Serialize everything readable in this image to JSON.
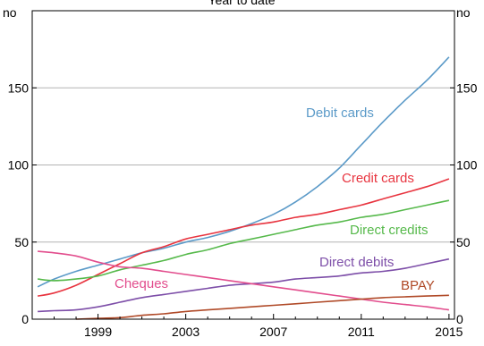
{
  "chart_data": {
    "type": "line",
    "title": "Year to date",
    "y_unit_left": "no",
    "y_unit_right": "no",
    "xlim": [
      1996.0,
      2015.25
    ],
    "ylim": [
      0,
      200
    ],
    "yticks": [
      0,
      50,
      100,
      150
    ],
    "xticks": [
      1999,
      2003,
      2007,
      2011,
      2015
    ],
    "grid": true,
    "series": [
      {
        "name": "Debit cards",
        "color": "#5b9ac8",
        "points": [
          [
            1996.25,
            21
          ],
          [
            1997,
            26
          ],
          [
            1998,
            31
          ],
          [
            1999,
            35
          ],
          [
            2000,
            39
          ],
          [
            2001,
            43
          ],
          [
            2002,
            46
          ],
          [
            2003,
            50
          ],
          [
            2004,
            53
          ],
          [
            2005,
            57
          ],
          [
            2006,
            62
          ],
          [
            2007,
            68
          ],
          [
            2008,
            76
          ],
          [
            2009,
            86
          ],
          [
            2010,
            98
          ],
          [
            2011,
            113
          ],
          [
            2012,
            128
          ],
          [
            2013,
            142
          ],
          [
            2014,
            155
          ],
          [
            2015,
            170
          ]
        ]
      },
      {
        "name": "Credit cards",
        "color": "#e8343f",
        "points": [
          [
            1996.25,
            15
          ],
          [
            1997,
            17
          ],
          [
            1998,
            22
          ],
          [
            1999,
            29
          ],
          [
            2000,
            36
          ],
          [
            2001,
            43
          ],
          [
            2002,
            47
          ],
          [
            2003,
            52
          ],
          [
            2004,
            55
          ],
          [
            2005,
            58
          ],
          [
            2006,
            61
          ],
          [
            2007,
            63
          ],
          [
            2008,
            66
          ],
          [
            2009,
            68
          ],
          [
            2010,
            71
          ],
          [
            2011,
            74
          ],
          [
            2012,
            78
          ],
          [
            2013,
            82
          ],
          [
            2014,
            86
          ],
          [
            2015,
            91
          ]
        ]
      },
      {
        "name": "Direct credits",
        "color": "#56b94b",
        "points": [
          [
            1996.25,
            26
          ],
          [
            1997,
            25
          ],
          [
            1998,
            26
          ],
          [
            1999,
            28
          ],
          [
            2000,
            32
          ],
          [
            2001,
            35
          ],
          [
            2002,
            38
          ],
          [
            2003,
            42
          ],
          [
            2004,
            45
          ],
          [
            2005,
            49
          ],
          [
            2006,
            52
          ],
          [
            2007,
            55
          ],
          [
            2008,
            58
          ],
          [
            2009,
            61
          ],
          [
            2010,
            63
          ],
          [
            2011,
            66
          ],
          [
            2012,
            68
          ],
          [
            2013,
            71
          ],
          [
            2014,
            74
          ],
          [
            2015,
            77
          ]
        ]
      },
      {
        "name": "Direct debits",
        "color": "#7d4ea8",
        "points": [
          [
            1996.25,
            5
          ],
          [
            1997,
            5.5
          ],
          [
            1998,
            6
          ],
          [
            1999,
            8
          ],
          [
            2000,
            11
          ],
          [
            2001,
            14
          ],
          [
            2002,
            16
          ],
          [
            2003,
            18
          ],
          [
            2004,
            20
          ],
          [
            2005,
            22
          ],
          [
            2006,
            23
          ],
          [
            2007,
            24
          ],
          [
            2008,
            26
          ],
          [
            2009,
            27
          ],
          [
            2010,
            28
          ],
          [
            2011,
            30
          ],
          [
            2012,
            31
          ],
          [
            2013,
            33
          ],
          [
            2014,
            36
          ],
          [
            2015,
            39
          ]
        ]
      },
      {
        "name": "Cheques",
        "color": "#e24d8d",
        "points": [
          [
            1996.25,
            44
          ],
          [
            1997,
            43
          ],
          [
            1998,
            41
          ],
          [
            1999,
            37
          ],
          [
            2000,
            34
          ],
          [
            2001,
            33
          ],
          [
            2002,
            31
          ],
          [
            2003,
            29
          ],
          [
            2004,
            27
          ],
          [
            2005,
            25
          ],
          [
            2006,
            23
          ],
          [
            2007,
            21
          ],
          [
            2008,
            19
          ],
          [
            2009,
            17
          ],
          [
            2010,
            15
          ],
          [
            2011,
            13
          ],
          [
            2012,
            11
          ],
          [
            2013,
            9.5
          ],
          [
            2014,
            8
          ],
          [
            2015,
            6
          ]
        ]
      },
      {
        "name": "BPAY",
        "color": "#b04a28",
        "points": [
          [
            1998,
            0
          ],
          [
            1999,
            0.5
          ],
          [
            2000,
            1
          ],
          [
            2001,
            2.5
          ],
          [
            2002,
            3.5
          ],
          [
            2003,
            5
          ],
          [
            2004,
            6
          ],
          [
            2005,
            7
          ],
          [
            2006,
            8
          ],
          [
            2007,
            9
          ],
          [
            2008,
            10
          ],
          [
            2009,
            11
          ],
          [
            2010,
            12
          ],
          [
            2011,
            13
          ],
          [
            2012,
            14
          ],
          [
            2013,
            14.5
          ],
          [
            2014,
            15
          ],
          [
            2015,
            15.5
          ]
        ]
      }
    ]
  }
}
